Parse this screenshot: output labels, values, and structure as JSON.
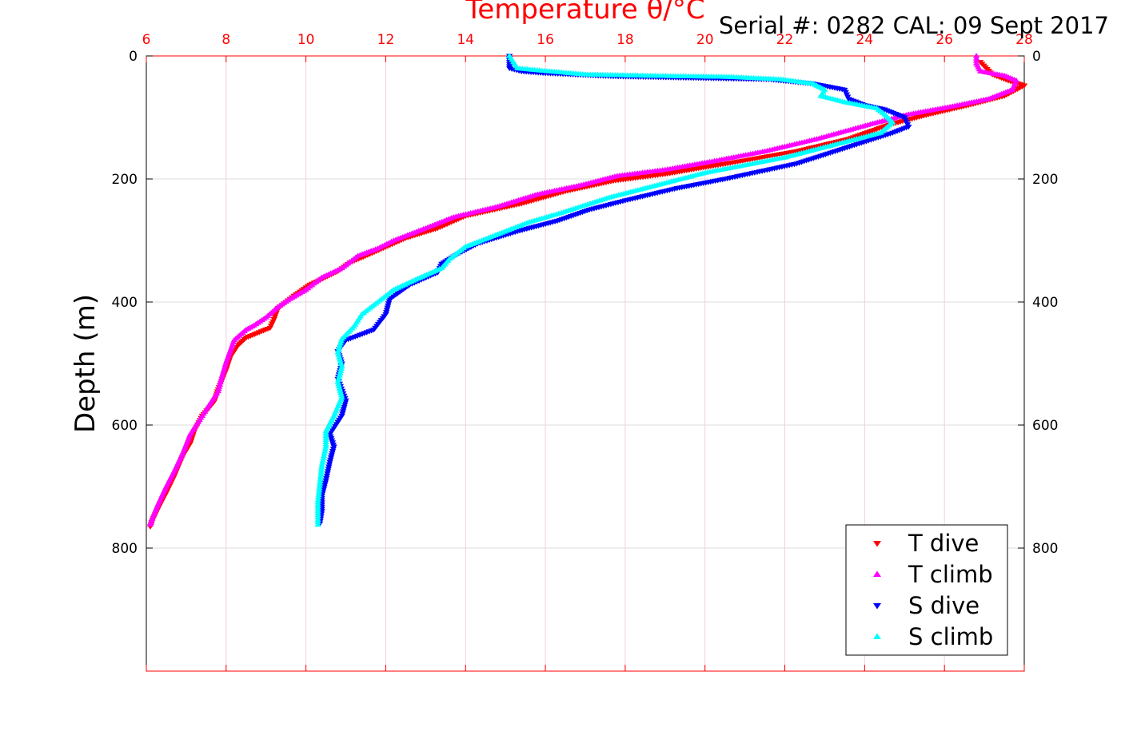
{
  "chart_data": {
    "type": "scatter",
    "title": "Temperature θ/°C",
    "subtitle": "Serial #: 0282  CAL: 09 Sept 2017",
    "xlabel": "Temperature θ/°C",
    "ylabel": "Depth (m)",
    "xlim": [
      6,
      28
    ],
    "ylim": [
      1000,
      0
    ],
    "x_ticks": [
      "6",
      "8",
      "10",
      "12",
      "14",
      "16",
      "18",
      "20",
      "22",
      "24",
      "26",
      "28"
    ],
    "y_ticks": [
      "0",
      "200",
      "400",
      "600",
      "800"
    ],
    "x_axis_position": "top",
    "grid": true,
    "legend_position": "bottom-right",
    "series": [
      {
        "name": "T dive",
        "color": "#ff0000",
        "marker": "triangle-down",
        "points": [
          [
            26.9,
            10
          ],
          [
            27.2,
            30
          ],
          [
            27.6,
            40
          ],
          [
            28.0,
            48
          ],
          [
            27.5,
            65
          ],
          [
            26.6,
            80
          ],
          [
            25.6,
            95
          ],
          [
            24.6,
            112
          ],
          [
            23.6,
            135
          ],
          [
            22.3,
            155
          ],
          [
            21.0,
            170
          ],
          [
            19.9,
            182
          ],
          [
            19.0,
            192
          ],
          [
            17.7,
            203
          ],
          [
            16.5,
            220
          ],
          [
            15.4,
            240
          ],
          [
            14.0,
            260
          ],
          [
            13.3,
            280
          ],
          [
            12.5,
            296
          ],
          [
            11.6,
            322
          ],
          [
            11.1,
            336
          ],
          [
            10.8,
            350
          ],
          [
            10.1,
            372
          ],
          [
            9.7,
            390
          ],
          [
            9.3,
            410
          ],
          [
            9.2,
            428
          ],
          [
            9.1,
            442
          ],
          [
            8.5,
            458
          ],
          [
            8.3,
            470
          ],
          [
            8.1,
            490
          ],
          [
            8.0,
            510
          ],
          [
            7.8,
            542
          ],
          [
            7.7,
            562
          ],
          [
            7.4,
            585
          ],
          [
            7.2,
            610
          ],
          [
            7.1,
            630
          ],
          [
            6.9,
            652
          ],
          [
            6.7,
            683
          ],
          [
            6.5,
            710
          ],
          [
            6.3,
            735
          ],
          [
            6.15,
            755
          ],
          [
            6.1,
            765
          ]
        ]
      },
      {
        "name": "T climb",
        "color": "#ff00ff",
        "marker": "triangle-up",
        "points": [
          [
            26.8,
            0
          ],
          [
            26.8,
            12
          ],
          [
            26.9,
            25
          ],
          [
            27.5,
            32
          ],
          [
            27.8,
            40
          ],
          [
            27.7,
            55
          ],
          [
            27.1,
            70
          ],
          [
            26.2,
            82
          ],
          [
            25.1,
            95
          ],
          [
            24.2,
            110
          ],
          [
            22.8,
            135
          ],
          [
            21.5,
            155
          ],
          [
            20.3,
            170
          ],
          [
            19.0,
            185
          ],
          [
            17.8,
            195
          ],
          [
            16.9,
            210
          ],
          [
            15.8,
            225
          ],
          [
            14.8,
            245
          ],
          [
            13.7,
            262
          ],
          [
            13.0,
            280
          ],
          [
            12.2,
            300
          ],
          [
            11.8,
            313
          ],
          [
            11.3,
            325
          ],
          [
            10.9,
            345
          ],
          [
            10.4,
            360
          ],
          [
            10.0,
            380
          ],
          [
            9.6,
            395
          ],
          [
            9.3,
            408
          ],
          [
            9.0,
            425
          ],
          [
            8.7,
            438
          ],
          [
            8.5,
            445
          ],
          [
            8.2,
            462
          ],
          [
            8.1,
            480
          ],
          [
            8.0,
            498
          ],
          [
            7.9,
            520
          ],
          [
            7.8,
            545
          ],
          [
            7.6,
            565
          ],
          [
            7.4,
            585
          ],
          [
            7.1,
            615
          ],
          [
            6.9,
            648
          ],
          [
            6.7,
            675
          ],
          [
            6.5,
            700
          ],
          [
            6.3,
            728
          ],
          [
            6.15,
            752
          ],
          [
            6.1,
            762
          ]
        ]
      },
      {
        "name": "S dive",
        "color": "#0000ff",
        "marker": "triangle-down",
        "points": [
          [
            15.1,
            0
          ],
          [
            15.1,
            10
          ],
          [
            15.1,
            20
          ],
          [
            15.4,
            25
          ],
          [
            16.0,
            28
          ],
          [
            17.7,
            33
          ],
          [
            19.9,
            36
          ],
          [
            21.6,
            38
          ],
          [
            22.7,
            45
          ],
          [
            23.5,
            55
          ],
          [
            23.6,
            70
          ],
          [
            24.0,
            80
          ],
          [
            24.5,
            87
          ],
          [
            25.0,
            100
          ],
          [
            25.1,
            115
          ],
          [
            24.7,
            125
          ],
          [
            23.5,
            150
          ],
          [
            22.3,
            175
          ],
          [
            20.5,
            200
          ],
          [
            19.3,
            215
          ],
          [
            18.0,
            235
          ],
          [
            17.1,
            250
          ],
          [
            16.3,
            268
          ],
          [
            15.3,
            285
          ],
          [
            14.3,
            305
          ],
          [
            13.8,
            322
          ],
          [
            13.4,
            338
          ],
          [
            13.3,
            352
          ],
          [
            12.6,
            372
          ],
          [
            12.1,
            395
          ],
          [
            12.0,
            420
          ],
          [
            11.7,
            445
          ],
          [
            11.0,
            462
          ],
          [
            10.8,
            480
          ],
          [
            10.9,
            500
          ],
          [
            10.8,
            525
          ],
          [
            11.0,
            560
          ],
          [
            10.9,
            585
          ],
          [
            10.6,
            615
          ],
          [
            10.7,
            635
          ],
          [
            10.6,
            660
          ],
          [
            10.5,
            690
          ],
          [
            10.4,
            715
          ],
          [
            10.4,
            740
          ],
          [
            10.35,
            760
          ]
        ]
      },
      {
        "name": "S climb",
        "color": "#00ffff",
        "marker": "triangle-up",
        "points": [
          [
            15.1,
            0
          ],
          [
            15.2,
            10
          ],
          [
            15.3,
            20
          ],
          [
            16.1,
            25
          ],
          [
            17.0,
            30
          ],
          [
            18.5,
            32
          ],
          [
            20.6,
            34
          ],
          [
            21.9,
            38
          ],
          [
            22.7,
            45
          ],
          [
            23.0,
            55
          ],
          [
            22.9,
            65
          ],
          [
            23.5,
            75
          ],
          [
            24.3,
            85
          ],
          [
            24.5,
            95
          ],
          [
            24.7,
            108
          ],
          [
            24.4,
            125
          ],
          [
            23.2,
            145
          ],
          [
            22.0,
            165
          ],
          [
            20.0,
            190
          ],
          [
            18.8,
            210
          ],
          [
            17.6,
            230
          ],
          [
            16.4,
            255
          ],
          [
            15.6,
            270
          ],
          [
            14.8,
            290
          ],
          [
            14.0,
            310
          ],
          [
            13.6,
            330
          ],
          [
            13.4,
            345
          ],
          [
            12.8,
            362
          ],
          [
            12.2,
            380
          ],
          [
            11.8,
            400
          ],
          [
            11.4,
            420
          ],
          [
            11.2,
            440
          ],
          [
            10.9,
            460
          ],
          [
            10.8,
            482
          ],
          [
            10.9,
            505
          ],
          [
            10.8,
            530
          ],
          [
            10.9,
            555
          ],
          [
            10.7,
            585
          ],
          [
            10.5,
            610
          ],
          [
            10.5,
            635
          ],
          [
            10.4,
            665
          ],
          [
            10.35,
            695
          ],
          [
            10.3,
            725
          ],
          [
            10.3,
            750
          ],
          [
            10.3,
            762
          ]
        ]
      }
    ]
  }
}
